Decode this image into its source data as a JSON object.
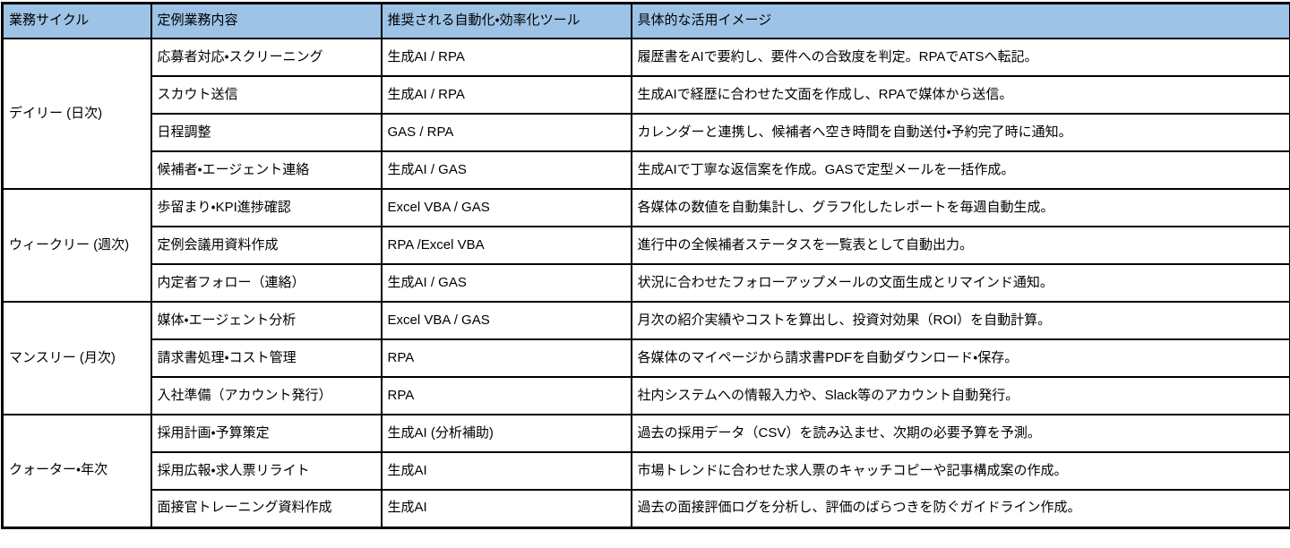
{
  "colors": {
    "header_bg": "#9DC3E6",
    "border": "#000000",
    "text": "#000000",
    "body_bg": "#FFFFFF"
  },
  "table": {
    "headers": {
      "cycle": "業務サイクル",
      "task": "定例業務内容",
      "tools": "推奨される自動化・効率化ツール",
      "usage": "具体的な活用イメージ"
    },
    "groups": [
      {
        "cycle": "デイリー (日次)",
        "rows": [
          {
            "task": "応募者対応・スクリーニング",
            "tools": "生成AI / RPA",
            "usage": "履歴書をAIで要約し、要件への合致度を判定。RPAでATSへ転記。"
          },
          {
            "task": "スカウト送信",
            "tools": "生成AI / RPA",
            "usage": "生成AIで経歴に合わせた文面を作成し、RPAで媒体から送信。"
          },
          {
            "task": "日程調整",
            "tools": "GAS / RPA",
            "usage": "カレンダーと連携し、候補者へ空き時間を自動送付・予約完了時に通知。"
          },
          {
            "task": "候補者・エージェント連絡",
            "tools": "生成AI / GAS",
            "usage": "生成AIで丁寧な返信案を作成。GASで定型メールを一括作成。"
          }
        ]
      },
      {
        "cycle": "ウィークリー (週次)",
        "rows": [
          {
            "task": "歩留まり・KPI進捗確認",
            "tools": "Excel VBA / GAS",
            "usage": "各媒体の数値を自動集計し、グラフ化したレポートを毎週自動生成。"
          },
          {
            "task": "定例会議用資料作成",
            "tools": "RPA /Excel VBA",
            "usage": "進行中の全候補者ステータスを一覧表として自動出力。"
          },
          {
            "task": "内定者フォロー（連絡）",
            "tools": "生成AI / GAS",
            "usage": "状況に合わせたフォローアップメールの文面生成とリマインド通知。"
          }
        ]
      },
      {
        "cycle": "マンスリー (月次)",
        "rows": [
          {
            "task": "媒体・エージェント分析",
            "tools": "Excel VBA / GAS",
            "usage": "月次の紹介実績やコストを算出し、投資対効果（ROI）を自動計算。"
          },
          {
            "task": "請求書処理・コスト管理",
            "tools": "RPA",
            "usage": "各媒体のマイページから請求書PDFを自動ダウンロード・保存。"
          },
          {
            "task": "入社準備（アカウント発行）",
            "tools": "RPA",
            "usage": "社内システムへの情報入力や、Slack等のアカウント自動発行。"
          }
        ]
      },
      {
        "cycle": "クォーター・年次",
        "rows": [
          {
            "task": "採用計画・予算策定",
            "tools": "生成AI (分析補助)",
            "usage": "過去の採用データ（CSV）を読み込ませ、次期の必要予算を予測。"
          },
          {
            "task": "採用広報・求人票リライト",
            "tools": "生成AI",
            "usage": "市場トレンドに合わせた求人票のキャッチコピーや記事構成案の作成。"
          },
          {
            "task": "面接官トレーニング資料作成",
            "tools": "生成AI",
            "usage": "過去の面接評価ログを分析し、評価のばらつきを防ぐガイドライン作成。"
          }
        ]
      }
    ]
  }
}
